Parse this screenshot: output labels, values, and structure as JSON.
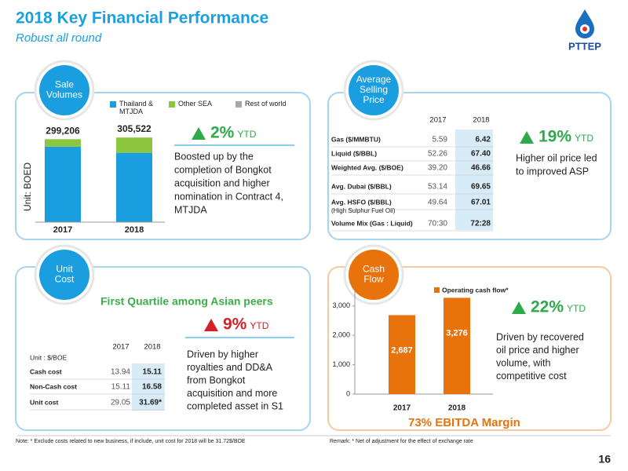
{
  "header": {
    "title": "2018 Key Financial Performance",
    "subtitle": "Robust all round",
    "logo": "PTTEP",
    "page": "16"
  },
  "panels": {
    "sale_volumes": {
      "badge": [
        "Sale",
        "Volumes"
      ],
      "change": "2%",
      "change_unit": "YTD",
      "description": [
        "Boosted up by the",
        "completion of Bongkot",
        "acquisition and  higher",
        "nomination in Contract 4,",
        "MTJDA"
      ]
    },
    "average_selling_price": {
      "badge": [
        "Average",
        "Selling",
        "Price"
      ],
      "change": "19%",
      "change_unit": "YTD",
      "description": [
        "Higher oil price led",
        "to improved ASP"
      ]
    },
    "unit_cost": {
      "badge": [
        "Unit",
        "Cost"
      ],
      "headline": "First Quartile among Asian peers",
      "change": "9%",
      "change_unit": "YTD",
      "description": [
        "Driven by higher",
        "royalties and DD&A",
        "from Bongkot",
        "acquisition and more",
        "completed asset in S1"
      ]
    },
    "cash_flow": {
      "badge": [
        "Cash",
        "Flow"
      ],
      "change": "22%",
      "change_unit": "YTD",
      "description": [
        "Driven by recovered",
        "oil price and higher",
        "volume, with",
        "competitive cost"
      ],
      "footer": "73%  EBITDA Margin"
    }
  },
  "chart_data": [
    {
      "type": "bar",
      "stacked": true,
      "categories": [
        "2017",
        "2018"
      ],
      "ylabel": "Unit: BOED",
      "series": [
        {
          "name": "Thailand & MTJDA",
          "color": "#1a9ee0",
          "values": [
            272000,
            250000
          ]
        },
        {
          "name": "Other SEA",
          "color": "#8cc63f",
          "values": [
            27000,
            55000
          ]
        },
        {
          "name": "Rest of world",
          "color": "#a6a6a6",
          "values": [
            0,
            0
          ]
        }
      ],
      "totals": [
        299206,
        305522
      ],
      "total_labels": [
        "299,206",
        "305,522"
      ]
    },
    {
      "type": "bar",
      "categories": [
        "2017",
        "2018"
      ],
      "series": [
        {
          "name": "Operating cash flow*",
          "color": "#e8720c",
          "values": [
            2687,
            3276
          ],
          "value_labels": [
            "2,687",
            "3,276"
          ]
        }
      ],
      "ylim": [
        0,
        3500
      ],
      "yticks": [
        0,
        {
          "value": 1000,
          "label": "1,000"
        },
        {
          "value": 2000,
          "label": "2,000"
        },
        {
          "value": 3000,
          "label": "3,000"
        }
      ]
    }
  ],
  "tables": {
    "asp": {
      "columns": [
        "2017",
        "2018"
      ],
      "rows": [
        [
          "Gas ($/MMBTU)",
          "5.59",
          "6.42"
        ],
        [
          "Liquid ($/BBL)",
          "52.26",
          "67.40"
        ],
        [
          "Weighted Avg. ($/BOE)",
          "39.20",
          "46.66"
        ],
        [
          "Avg. Dubai ($/BBL)",
          "53.14",
          "69.65"
        ],
        [
          "Avg. HSFO ($/BBL)",
          "49.64",
          "67.01"
        ],
        [
          "Volume Mix (Gas : Liquid)",
          "70:30",
          "72:28"
        ]
      ],
      "row_note": "(High Sulphur Fuel Oil)"
    },
    "unit_cost": {
      "unit": "Unit : $/BOE",
      "columns": [
        "2017",
        "2018"
      ],
      "rows": [
        [
          "Cash cost",
          "13.94",
          "15.11"
        ],
        [
          "Non-Cash cost",
          "15.11",
          "16.58"
        ],
        [
          "Unit cost",
          "29.05",
          "31.69*"
        ]
      ]
    }
  },
  "notes": {
    "left": "Note:   * Exclude costs related to new business, if include, unit cost for 2018 will be 31.72$/BOE",
    "right": "Remark:  *    Net of adjustment for the effect of exchange rate"
  }
}
